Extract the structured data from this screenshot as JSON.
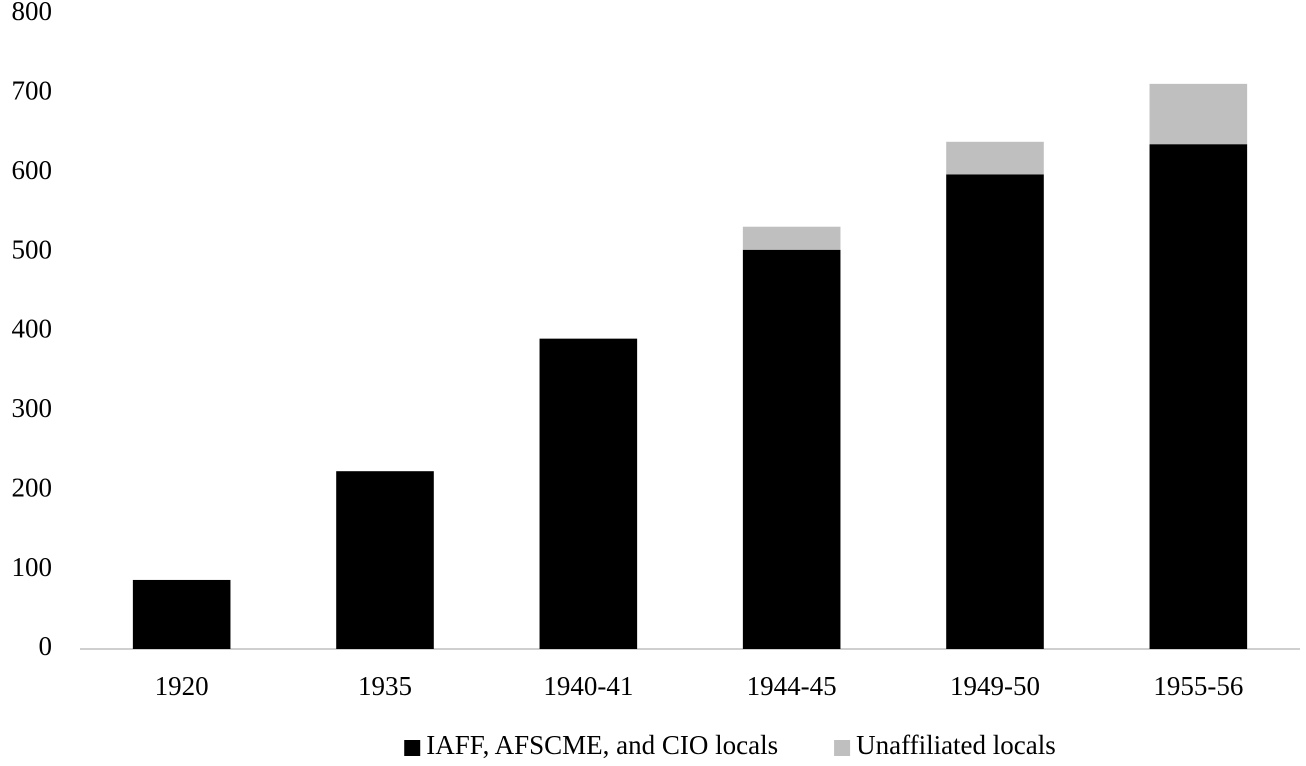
{
  "chart_data": {
    "type": "stacked_bar",
    "categories": [
      "1920",
      "1935",
      "1940-41",
      "1944-45",
      "1949-50",
      "1955-56"
    ],
    "series": [
      {
        "name": "IAFF, AFSCME, and CIO locals",
        "color": "#000000",
        "values": [
          87,
          224,
          391,
          503,
          598,
          636
        ]
      },
      {
        "name": "Unaffiliated locals",
        "color": "#bfbfbf",
        "values": [
          0,
          0,
          0,
          29,
          41,
          76
        ]
      }
    ],
    "ylim": [
      0,
      800
    ],
    "yticks": [
      0,
      100,
      200,
      300,
      400,
      500,
      600,
      700,
      800
    ],
    "grid": false,
    "legend": "bottom"
  }
}
